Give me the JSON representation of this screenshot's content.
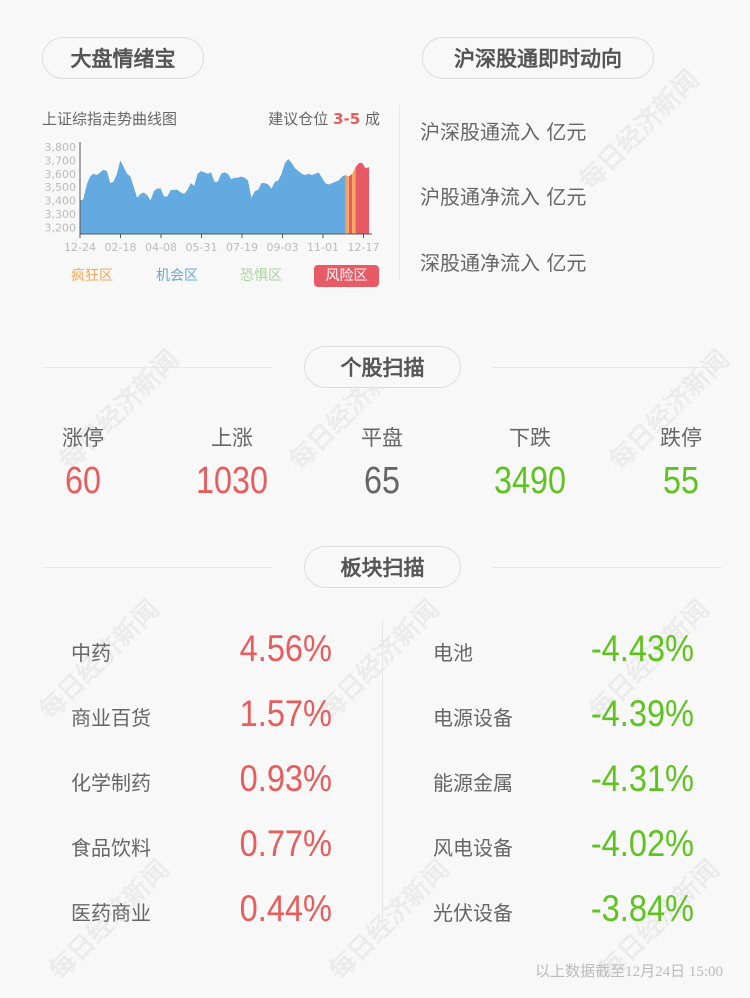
{
  "watermark": "每日经济新闻",
  "market": {
    "title": "大盘情绪宝",
    "chart_title": "上证综指走势曲线图",
    "advice_prefix": "建议仓位",
    "advice_value": "3-5",
    "advice_suffix": "成",
    "legend": [
      {
        "label": "疯狂区",
        "color": "#f6a85a"
      },
      {
        "label": "机会区",
        "color": "#62aadf"
      },
      {
        "label": "恐惧区",
        "color": "#a9d49a"
      },
      {
        "label": "风险区",
        "color": "#e85a66"
      }
    ]
  },
  "chart_data": {
    "type": "area",
    "ylim": [
      3150,
      3800
    ],
    "yticks": [
      "3,800",
      "3,700",
      "3,600",
      "3,500",
      "3,400",
      "3,300",
      "3,200"
    ],
    "ytick_values": [
      3800,
      3700,
      3600,
      3500,
      3400,
      3300,
      3200
    ],
    "xticks": [
      "12-24",
      "02-18",
      "04-08",
      "05-31",
      "07-19",
      "09-03",
      "11-01",
      "12-17"
    ],
    "values": [
      3400,
      3410,
      3520,
      3580,
      3600,
      3590,
      3610,
      3630,
      3620,
      3530,
      3540,
      3600,
      3700,
      3650,
      3600,
      3580,
      3500,
      3420,
      3450,
      3460,
      3440,
      3400,
      3470,
      3490,
      3490,
      3430,
      3430,
      3480,
      3480,
      3480,
      3460,
      3450,
      3480,
      3530,
      3510,
      3600,
      3620,
      3610,
      3600,
      3610,
      3540,
      3540,
      3600,
      3610,
      3600,
      3560,
      3570,
      3570,
      3580,
      3570,
      3550,
      3420,
      3470,
      3480,
      3530,
      3530,
      3520,
      3490,
      3540,
      3550,
      3600,
      3680,
      3710,
      3680,
      3640,
      3620,
      3600,
      3590,
      3600,
      3590,
      3600,
      3610,
      3570,
      3530,
      3520,
      3530,
      3540,
      3550,
      3580,
      3590,
      3580,
      3600,
      3650,
      3680,
      3680,
      3640,
      3650
    ],
    "zones": [
      "机会区",
      "疯狂区",
      "风险区",
      "疯狂区",
      "风险区"
    ],
    "zone_breaks": [
      79,
      80,
      81,
      82
    ],
    "grid": false
  },
  "hsgt": {
    "title": "沪深股通即时动向",
    "items": [
      "沪深股通流入 亿元",
      "沪股通净流入 亿元",
      "深股通净流入 亿元"
    ]
  },
  "stocks": {
    "title": "个股扫描",
    "items": [
      {
        "label": "涨停",
        "value": "60",
        "tone": "red"
      },
      {
        "label": "上涨",
        "value": "1030",
        "tone": "red"
      },
      {
        "label": "平盘",
        "value": "65",
        "tone": "gray"
      },
      {
        "label": "下跌",
        "value": "3490",
        "tone": "green"
      },
      {
        "label": "跌停",
        "value": "55",
        "tone": "green"
      }
    ]
  },
  "sectors": {
    "title": "板块扫描",
    "up": [
      {
        "name": "中药",
        "value": "4.56%"
      },
      {
        "name": "商业百货",
        "value": "1.57%"
      },
      {
        "name": "化学制药",
        "value": "0.93%"
      },
      {
        "name": "食品饮料",
        "value": "0.77%"
      },
      {
        "name": "医药商业",
        "value": "0.44%"
      }
    ],
    "down": [
      {
        "name": "电池",
        "value": "-4.43%"
      },
      {
        "name": "电源设备",
        "value": "-4.39%"
      },
      {
        "name": "能源金属",
        "value": "-4.31%"
      },
      {
        "name": "风电设备",
        "value": "-4.02%"
      },
      {
        "name": "光伏设备",
        "value": "-3.84%"
      }
    ]
  },
  "footer": "以上数据截至12月24日 15:00"
}
